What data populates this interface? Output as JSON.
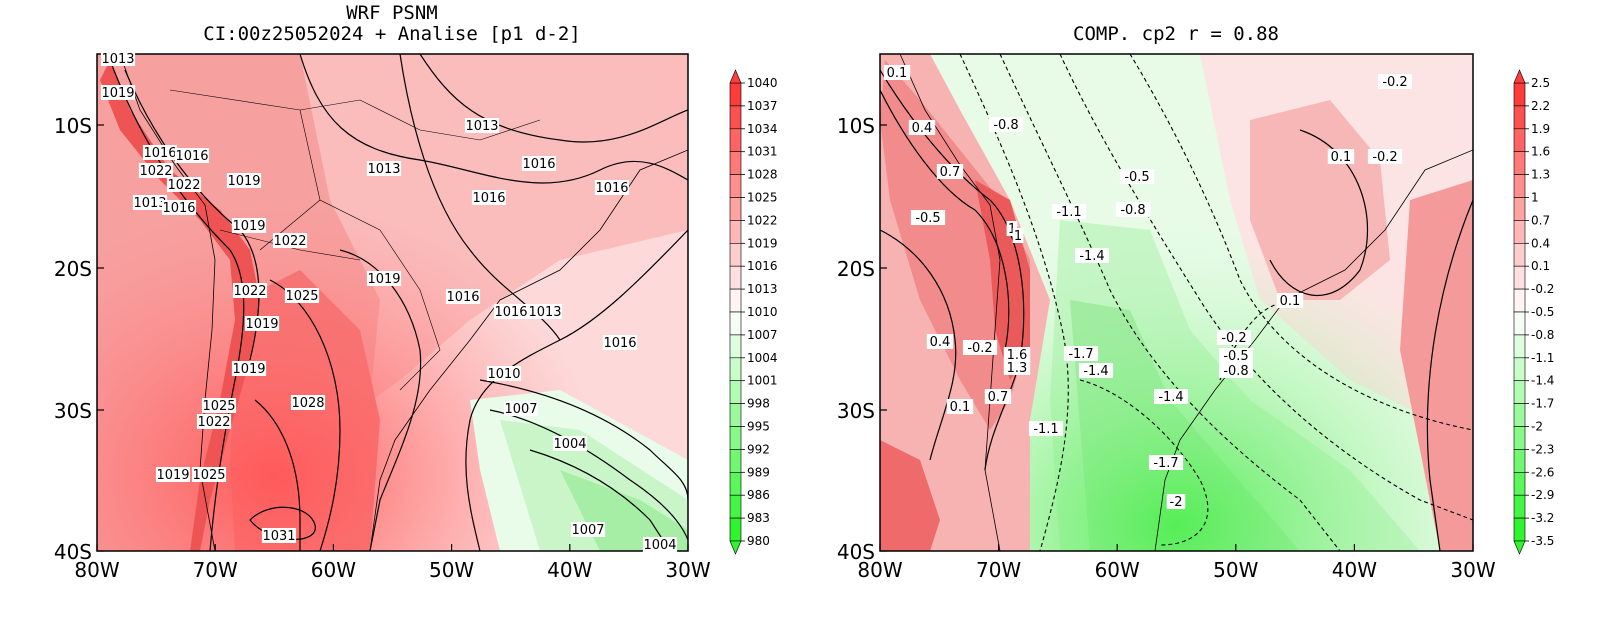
{
  "left_panel": {
    "title_line1": "WRF PSNM",
    "title_line2": "CI:00z25052024 + Analise  [p1 d-2]",
    "x_ticks": [
      "80W",
      "70W",
      "60W",
      "50W",
      "40W",
      "30W"
    ],
    "y_ticks": [
      "10S",
      "20S",
      "30S",
      "40S"
    ],
    "colorbar": [
      "1040",
      "1037",
      "1034",
      "1031",
      "1028",
      "1025",
      "1022",
      "1019",
      "1016",
      "1013",
      "1010",
      "1007",
      "1004",
      "1001",
      "998",
      "995",
      "992",
      "989",
      "986",
      "983",
      "980"
    ],
    "contour_labels": [
      "1013",
      "1019",
      "1016",
      "1016",
      "1022",
      "1022",
      "1019",
      "1013",
      "1016",
      "1013",
      "1013",
      "1016",
      "1016",
      "1016",
      "1019",
      "1022",
      "1019",
      "1022",
      "1025",
      "1019",
      "1019",
      "1025",
      "1022",
      "1028",
      "1016",
      "1016",
      "1013",
      "1010",
      "1007",
      "1004",
      "1016",
      "1019",
      "1025",
      "1031",
      "1007",
      "1004"
    ]
  },
  "right_panel": {
    "title": "COMP. cp2  r =  0.88",
    "x_ticks": [
      "80W",
      "70W",
      "60W",
      "50W",
      "40W",
      "30W"
    ],
    "y_ticks": [
      "10S",
      "20S",
      "30S",
      "40S"
    ],
    "colorbar": [
      "2.5",
      "2.2",
      "1.9",
      "1.6",
      "1.3",
      "1",
      "0.7",
      "0.4",
      "0.1",
      "-0.2",
      "-0.5",
      "-0.8",
      "-1.1",
      "-1.4",
      "-1.7",
      "-2",
      "-2.3",
      "-2.6",
      "-2.9",
      "-3.2",
      "-3.5"
    ],
    "contour_labels": [
      "0.1",
      "0.4",
      "0.7",
      "-0.5",
      "-0.8",
      "-0.5",
      "-0.8",
      "-1.1",
      "1",
      "1",
      "-1.4",
      "0.4",
      "-0.2",
      "1.6",
      "1.3",
      "-1.7",
      "-1.4",
      "0.1",
      "0.7",
      "-1.1",
      "-1.4",
      "-0.2",
      "-0.5",
      "-0.8",
      "-1.7",
      "-2",
      "0.1",
      "-0.2",
      "0.1",
      "-0.2"
    ]
  },
  "colors": {
    "high": "#ff3b3b",
    "low": "#2ef52e",
    "neutral": "#ffffff",
    "background": "#ffffff"
  }
}
